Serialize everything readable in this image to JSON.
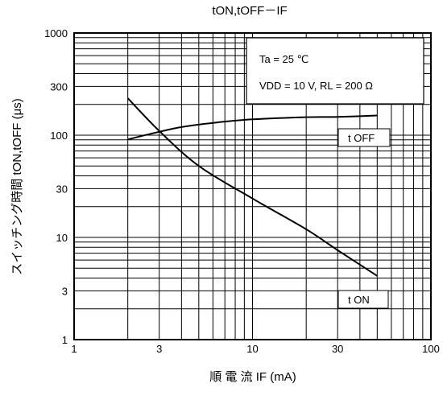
{
  "chart_data": {
    "type": "line",
    "title": "tON,tOFF－IF",
    "xlabel": "順 電 流 IF (mA)",
    "ylabel": "スイッチング時間 tON,tOFF (μs)",
    "x_scale": "log",
    "y_scale": "log",
    "xlim": [
      1,
      100
    ],
    "ylim": [
      1,
      1000
    ],
    "x_ticks": [
      1,
      3,
      10,
      30,
      100
    ],
    "x_tick_labels": [
      "1",
      "3",
      "10",
      "30",
      "100"
    ],
    "y_ticks": [
      1,
      3,
      10,
      30,
      100,
      300,
      1000
    ],
    "y_tick_labels": [
      "1",
      "3",
      "10",
      "30",
      "100",
      "300",
      "1000"
    ],
    "grid": true,
    "series": [
      {
        "name": "t OFF",
        "x": [
          2,
          3,
          4,
          6,
          10,
          20,
          30,
          50
        ],
        "y": [
          91,
          108,
          120,
          132,
          143,
          150,
          151,
          156
        ]
      },
      {
        "name": "t ON",
        "x": [
          2,
          3,
          5,
          10,
          20,
          30,
          50
        ],
        "y": [
          230,
          110,
          50,
          24,
          12,
          7.5,
          4.2
        ]
      }
    ],
    "annotations": [
      "Ta = 25 ℃",
      "VDD = 10 V,   RL = 200 Ω"
    ],
    "legend_position": "top-right"
  }
}
